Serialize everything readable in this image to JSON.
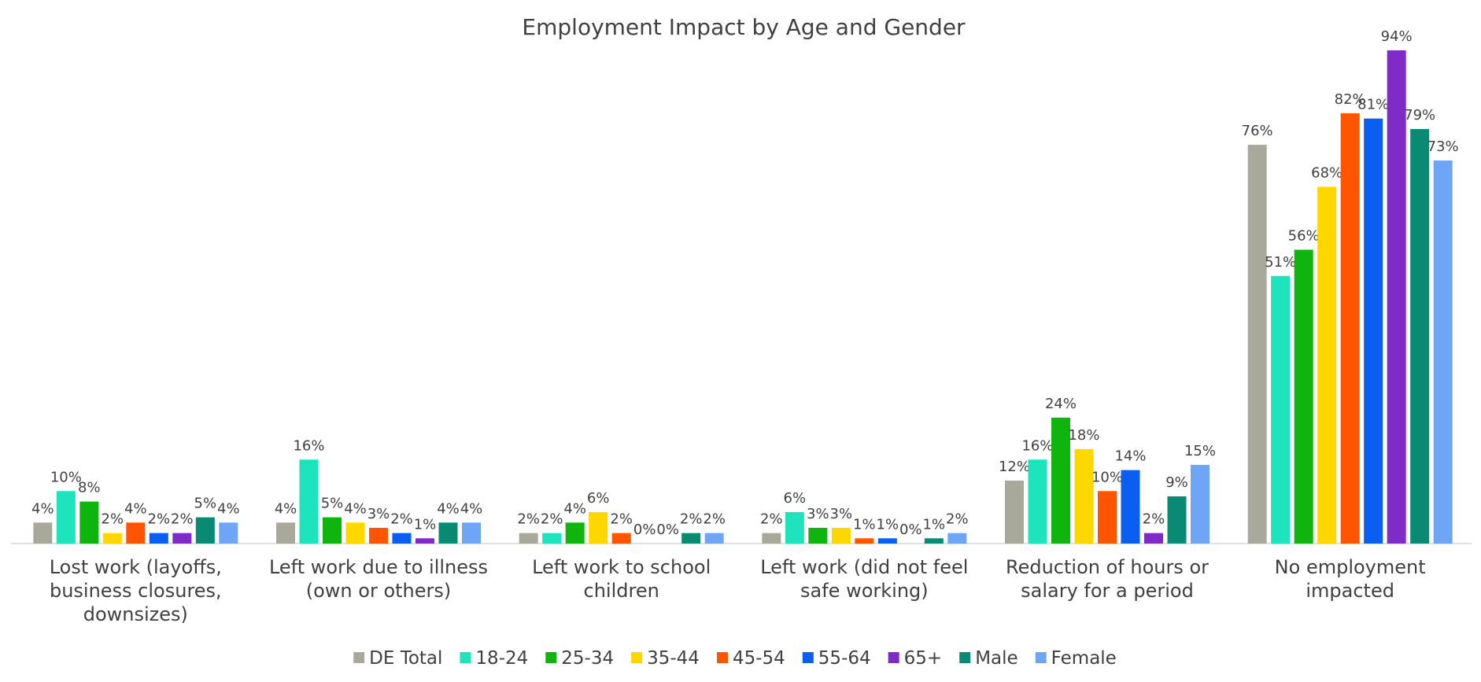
{
  "chart_data": {
    "type": "bar",
    "title": "Employment Impact by Age and Gender",
    "categories": [
      "Lost work (layoffs, business closures, downsizes)",
      "Left work due to illness (own or others)",
      "Left work to school children",
      "Left work (did not feel safe working)",
      "Reduction of hours or salary for a period",
      "No employment impacted"
    ],
    "series": [
      {
        "name": "DE Total",
        "color": "#a9a99b",
        "values": [
          4,
          4,
          2,
          2,
          12,
          76
        ],
        "value_labels": [
          "4%",
          "4%",
          "2%",
          "2%",
          "12%",
          "76%"
        ]
      },
      {
        "name": "18-24",
        "color": "#1de4bd",
        "values": [
          10,
          16,
          2,
          6,
          16,
          51
        ],
        "value_labels": [
          "10%",
          "16%",
          "2%",
          "6%",
          "16%",
          "51%"
        ]
      },
      {
        "name": "25-34",
        "color": "#0fb40f",
        "values": [
          8,
          5,
          4,
          3,
          24,
          56
        ],
        "value_labels": [
          "8%",
          "5%",
          "4%",
          "3%",
          "24%",
          "56%"
        ]
      },
      {
        "name": "35-44",
        "color": "#ffd700",
        "values": [
          2,
          4,
          6,
          3,
          18,
          68
        ],
        "value_labels": [
          "2%",
          "4%",
          "6%",
          "3%",
          "18%",
          "68%"
        ]
      },
      {
        "name": "45-54",
        "color": "#ff5500",
        "values": [
          4,
          3,
          2,
          1,
          10,
          82
        ],
        "value_labels": [
          "4%",
          "3%",
          "2%",
          "1%",
          "10%",
          "82%"
        ]
      },
      {
        "name": "55-64",
        "color": "#0a5ff0",
        "values": [
          2,
          2,
          0,
          1,
          14,
          81
        ],
        "value_labels": [
          "2%",
          "2%",
          "0%",
          "1%",
          "14%",
          "81%"
        ]
      },
      {
        "name": "65+",
        "color": "#7f2bc8",
        "values": [
          2,
          1,
          0,
          0,
          2,
          94
        ],
        "value_labels": [
          "2%",
          "1%",
          "0%",
          "0%",
          "2%",
          "94%"
        ]
      },
      {
        "name": "Male",
        "color": "#0a8a72",
        "values": [
          5,
          4,
          2,
          1,
          9,
          79
        ],
        "value_labels": [
          "5%",
          "4%",
          "2%",
          "1%",
          "9%",
          "79%"
        ]
      },
      {
        "name": "Female",
        "color": "#6ea5f5",
        "values": [
          4,
          4,
          2,
          2,
          15,
          73
        ],
        "value_labels": [
          "4%",
          "4%",
          "2%",
          "2%",
          "15%",
          "73%"
        ]
      }
    ],
    "legend": "bottom"
  }
}
